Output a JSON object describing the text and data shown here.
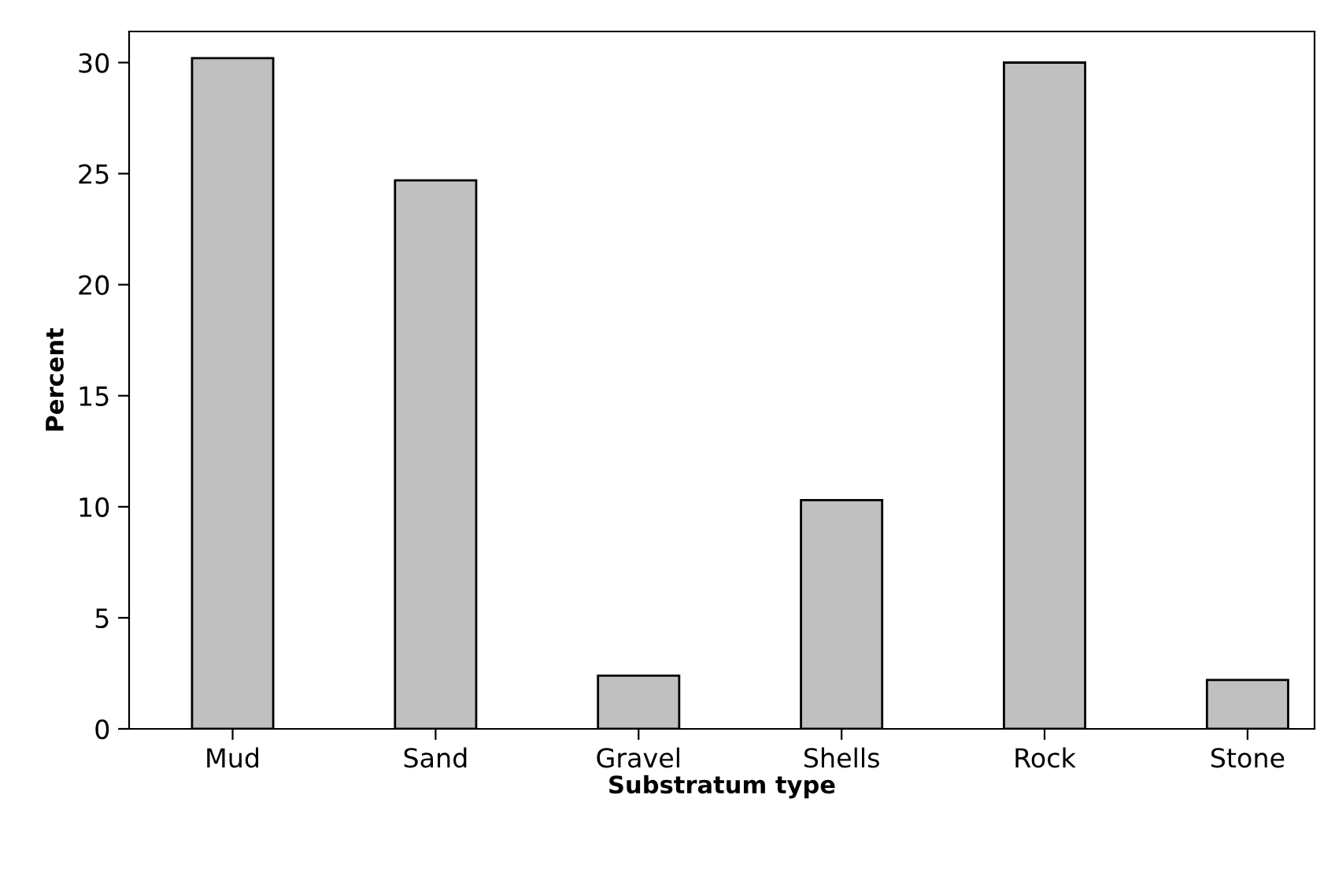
{
  "chart_data": {
    "type": "bar",
    "xlabel": "Substratum type",
    "ylabel": "Percent",
    "categories": [
      "Mud",
      "Sand",
      "Gravel",
      "Shells",
      "Rock",
      "Stone"
    ],
    "values": [
      30.2,
      24.7,
      2.4,
      10.3,
      30.0,
      2.2
    ],
    "color": "#c0c0c0",
    "ylim": [
      0,
      31.4
    ],
    "yticks": [
      0,
      5,
      10,
      15,
      20,
      25,
      30
    ],
    "grid": false
  }
}
